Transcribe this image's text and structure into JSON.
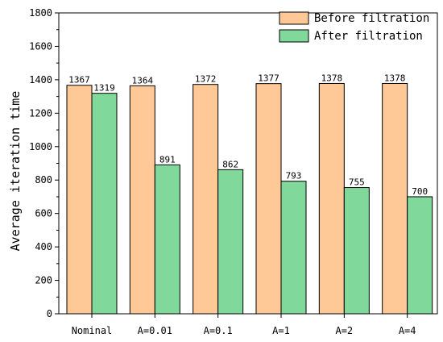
{
  "chart_data": {
    "type": "bar",
    "categories": [
      "Nominal",
      "A=0.01",
      "A=0.1",
      "A=1",
      "A=2",
      "A=4"
    ],
    "series": [
      {
        "name": "Before filtration",
        "values": [
          1367,
          1364,
          1372,
          1377,
          1378,
          1378
        ],
        "color": "#FFC896"
      },
      {
        "name": "After filtration",
        "values": [
          1319,
          891,
          862,
          793,
          755,
          700
        ],
        "color": "#80D89A"
      }
    ],
    "ylabel": "Average iteration time",
    "xlabel": "",
    "ylim": [
      0,
      1800
    ],
    "yticks": [
      0,
      200,
      400,
      600,
      800,
      1000,
      1200,
      1400,
      1600,
      1800
    ],
    "legend_position": "top-right",
    "grid": false
  }
}
